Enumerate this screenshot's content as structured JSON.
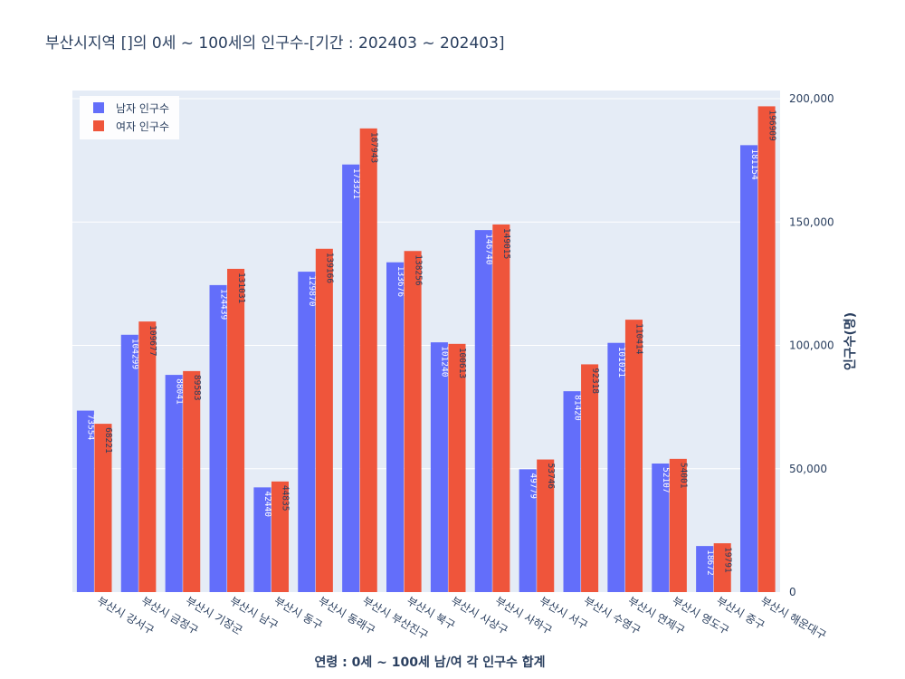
{
  "chart_data": {
    "type": "bar",
    "title": "부산시지역 []의 0세 ~ 100세의 인구수-[기간 : 202403 ~ 202403]",
    "xlabel": "연령 : 0세 ~ 100세 남/여 각 인구수 합계",
    "ylabel": "인구수(명)",
    "ylim": [
      0,
      200000
    ],
    "yticks": [
      0,
      50000,
      100000,
      150000,
      200000
    ],
    "ytick_labels": [
      "0",
      "50,000",
      "100,000",
      "150,000",
      "200,000"
    ],
    "yaxis_side": "right",
    "grid": true,
    "legend_position": "top-left",
    "categories": [
      "부산시 강서구",
      "부산시 금정구",
      "부산시 기장군",
      "부산시 남구",
      "부산시 동구",
      "부산시 동래구",
      "부산시 부산진구",
      "부산시 북구",
      "부산시 사상구",
      "부산시 사하구",
      "부산시 서구",
      "부산시 수영구",
      "부산시 연제구",
      "부산시 영도구",
      "부산시 중구",
      "부산시 해운대구"
    ],
    "series": [
      {
        "name": "남자 인구수",
        "color": "#636efa",
        "values": [
          73554,
          104299,
          88041,
          124439,
          42440,
          129870,
          173321,
          133676,
          101240,
          146740,
          49779,
          81420,
          101021,
          52107,
          18672,
          181154
        ]
      },
      {
        "name": "여자 인구수",
        "color": "#ef553b",
        "values": [
          68221,
          109677,
          89583,
          131031,
          44835,
          139166,
          187943,
          138256,
          100613,
          149015,
          53746,
          92318,
          110414,
          54001,
          19791,
          196909
        ]
      }
    ]
  }
}
